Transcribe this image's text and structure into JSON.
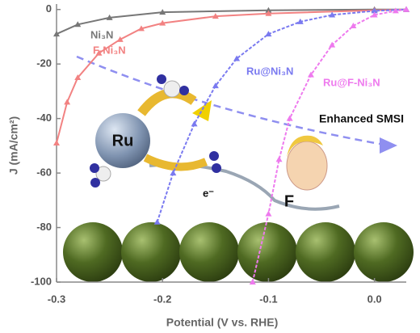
{
  "chart_data": {
    "type": "line",
    "x_label": "Potential (V vs. RHE)",
    "y_label": "J (mA/cm²)",
    "xlim": [
      -0.3,
      0.03
    ],
    "ylim": [
      -100,
      2
    ],
    "xticks": [
      -0.3,
      -0.2,
      -0.1,
      {
        "value": 0,
        "label": "0.0"
      }
    ],
    "yticks": [
      -100,
      -80,
      -60,
      -40,
      -20,
      0
    ],
    "series": [
      {
        "name": "Ni₃N",
        "color": "#777777",
        "x": [
          -0.3,
          -0.28,
          -0.25,
          -0.2,
          -0.1,
          0,
          0.03
        ],
        "values": [
          -9,
          -5.5,
          -3,
          -1,
          -0.3,
          0,
          0
        ]
      },
      {
        "name": "F-Ni₃N",
        "color": "#f28282",
        "x": [
          -0.3,
          -0.29,
          -0.28,
          -0.26,
          -0.24,
          -0.22,
          -0.2,
          -0.15,
          -0.1,
          0,
          0.03
        ],
        "values": [
          -49,
          -34,
          -25,
          -16,
          -11,
          -7,
          -5,
          -2.5,
          -1.5,
          -0.3,
          0
        ]
      },
      {
        "name": "Ru@Ni₃N",
        "color": "#7a7af0",
        "x": [
          -0.205,
          -0.19,
          -0.17,
          -0.15,
          -0.13,
          -0.1,
          -0.07,
          -0.04,
          0,
          0.03
        ],
        "values": [
          -78,
          -60,
          -42,
          -28,
          -18,
          -9,
          -4.5,
          -2,
          -0.5,
          0
        ]
      },
      {
        "name": "Ru@F-Ni₃N",
        "color": "#ee7aee",
        "x": [
          -0.115,
          -0.1,
          -0.09,
          -0.08,
          -0.06,
          -0.04,
          -0.02,
          0,
          0.02,
          0.03
        ],
        "values": [
          -100,
          -75,
          -55,
          -40,
          -24,
          -13,
          -6,
          -2,
          -0.5,
          0
        ]
      }
    ],
    "annotations": [
      "Enhanced SMSI",
      "Ru",
      "F",
      "e⁻"
    ]
  }
}
